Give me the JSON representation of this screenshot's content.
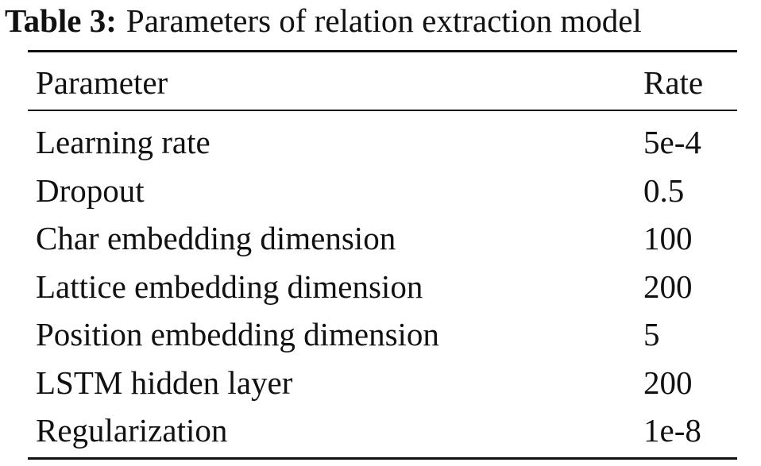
{
  "caption": {
    "label": "Table 3:",
    "text": "Parameters of relation extraction model"
  },
  "table": {
    "headers": [
      "Parameter",
      "Rate"
    ],
    "rows": [
      [
        "Learning rate",
        "5e-4"
      ],
      [
        "Dropout",
        "0.5"
      ],
      [
        "Char embedding dimension",
        "100"
      ],
      [
        "Lattice embedding dimension",
        "200"
      ],
      [
        "Position embedding dimension",
        "5"
      ],
      [
        "LSTM hidden layer",
        "200"
      ],
      [
        "Regularization",
        "1e-8"
      ]
    ]
  }
}
